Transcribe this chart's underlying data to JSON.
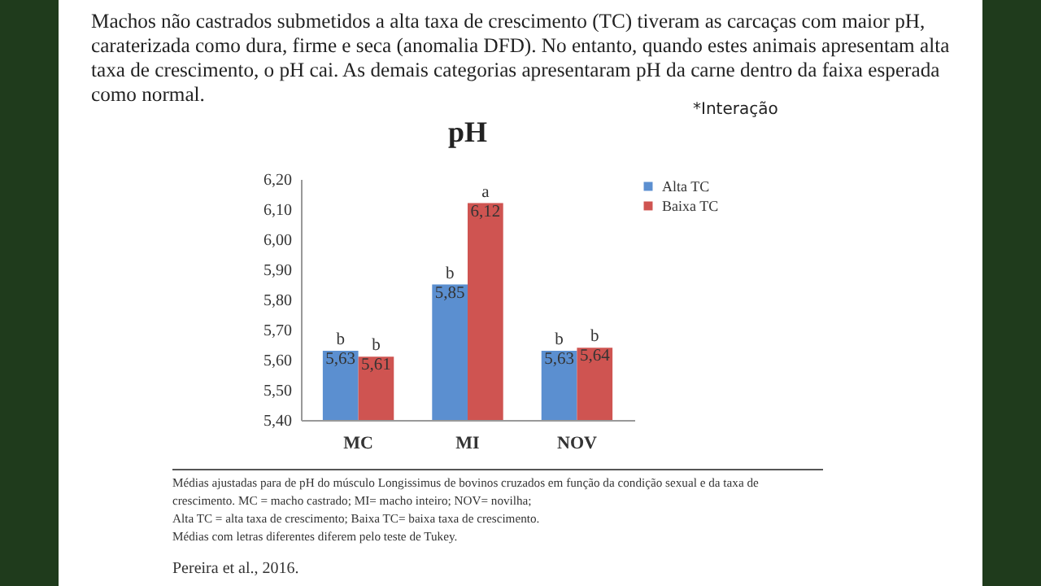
{
  "chart_data": {
    "type": "bar",
    "title": "pH",
    "categories": [
      "MC",
      "MI",
      "NOV"
    ],
    "series": [
      {
        "name": "Alta TC",
        "color": "#5b8fd0",
        "values": [
          5.63,
          5.85,
          5.63
        ],
        "value_labels": [
          "b\n5,63",
          "b\n5,85",
          "b\n5,63"
        ]
      },
      {
        "name": "Baixa TC",
        "color": "#cf5451",
        "values": [
          5.61,
          6.12,
          5.64
        ],
        "value_labels": [
          "b\n5,61",
          "a\n6,12",
          "b\n5,64"
        ]
      }
    ],
    "ylim": [
      5.4,
      6.2
    ],
    "yticks": [
      {
        "value": 5.4,
        "label": "5,40"
      },
      {
        "value": 5.5,
        "label": "5,50"
      },
      {
        "value": 5.6,
        "label": "5,60"
      },
      {
        "value": 5.7,
        "label": "5,70"
      },
      {
        "value": 5.8,
        "label": "5,80"
      },
      {
        "value": 5.9,
        "label": "5,90"
      },
      {
        "value": 6.0,
        "label": "6,00"
      },
      {
        "value": 6.1,
        "label": "6,10"
      },
      {
        "value": 6.2,
        "label": "6,20"
      }
    ],
    "grid": false,
    "legend": "right",
    "annotations": [
      "Machos não castrados submetidos a alta taxa de crescimento (TC) tiveram as carcaças com maior pH, caraterizada como dura, firme e seca (anomalia DFD). No entanto, quando estes animais apresentam alta taxa de crescimento, o pH cai. As demais categorias apresentaram pH da carne dentro da faixa esperada como normal.",
      "*Interação",
      "Médias ajustadas para de pH do músculo Longissimus de bovinos cruzados em função da condição sexual e da taxa de crescimento. MC = macho castrado; MI= macho inteiro; NOV= novilha;",
      "Alta TC = alta taxa de crescimento; Baixa TC= baixa taxa de crescimento.",
      "Médias com letras diferentes diferem pelo teste de Tukey.",
      "Pereira et al., 2016."
    ]
  }
}
